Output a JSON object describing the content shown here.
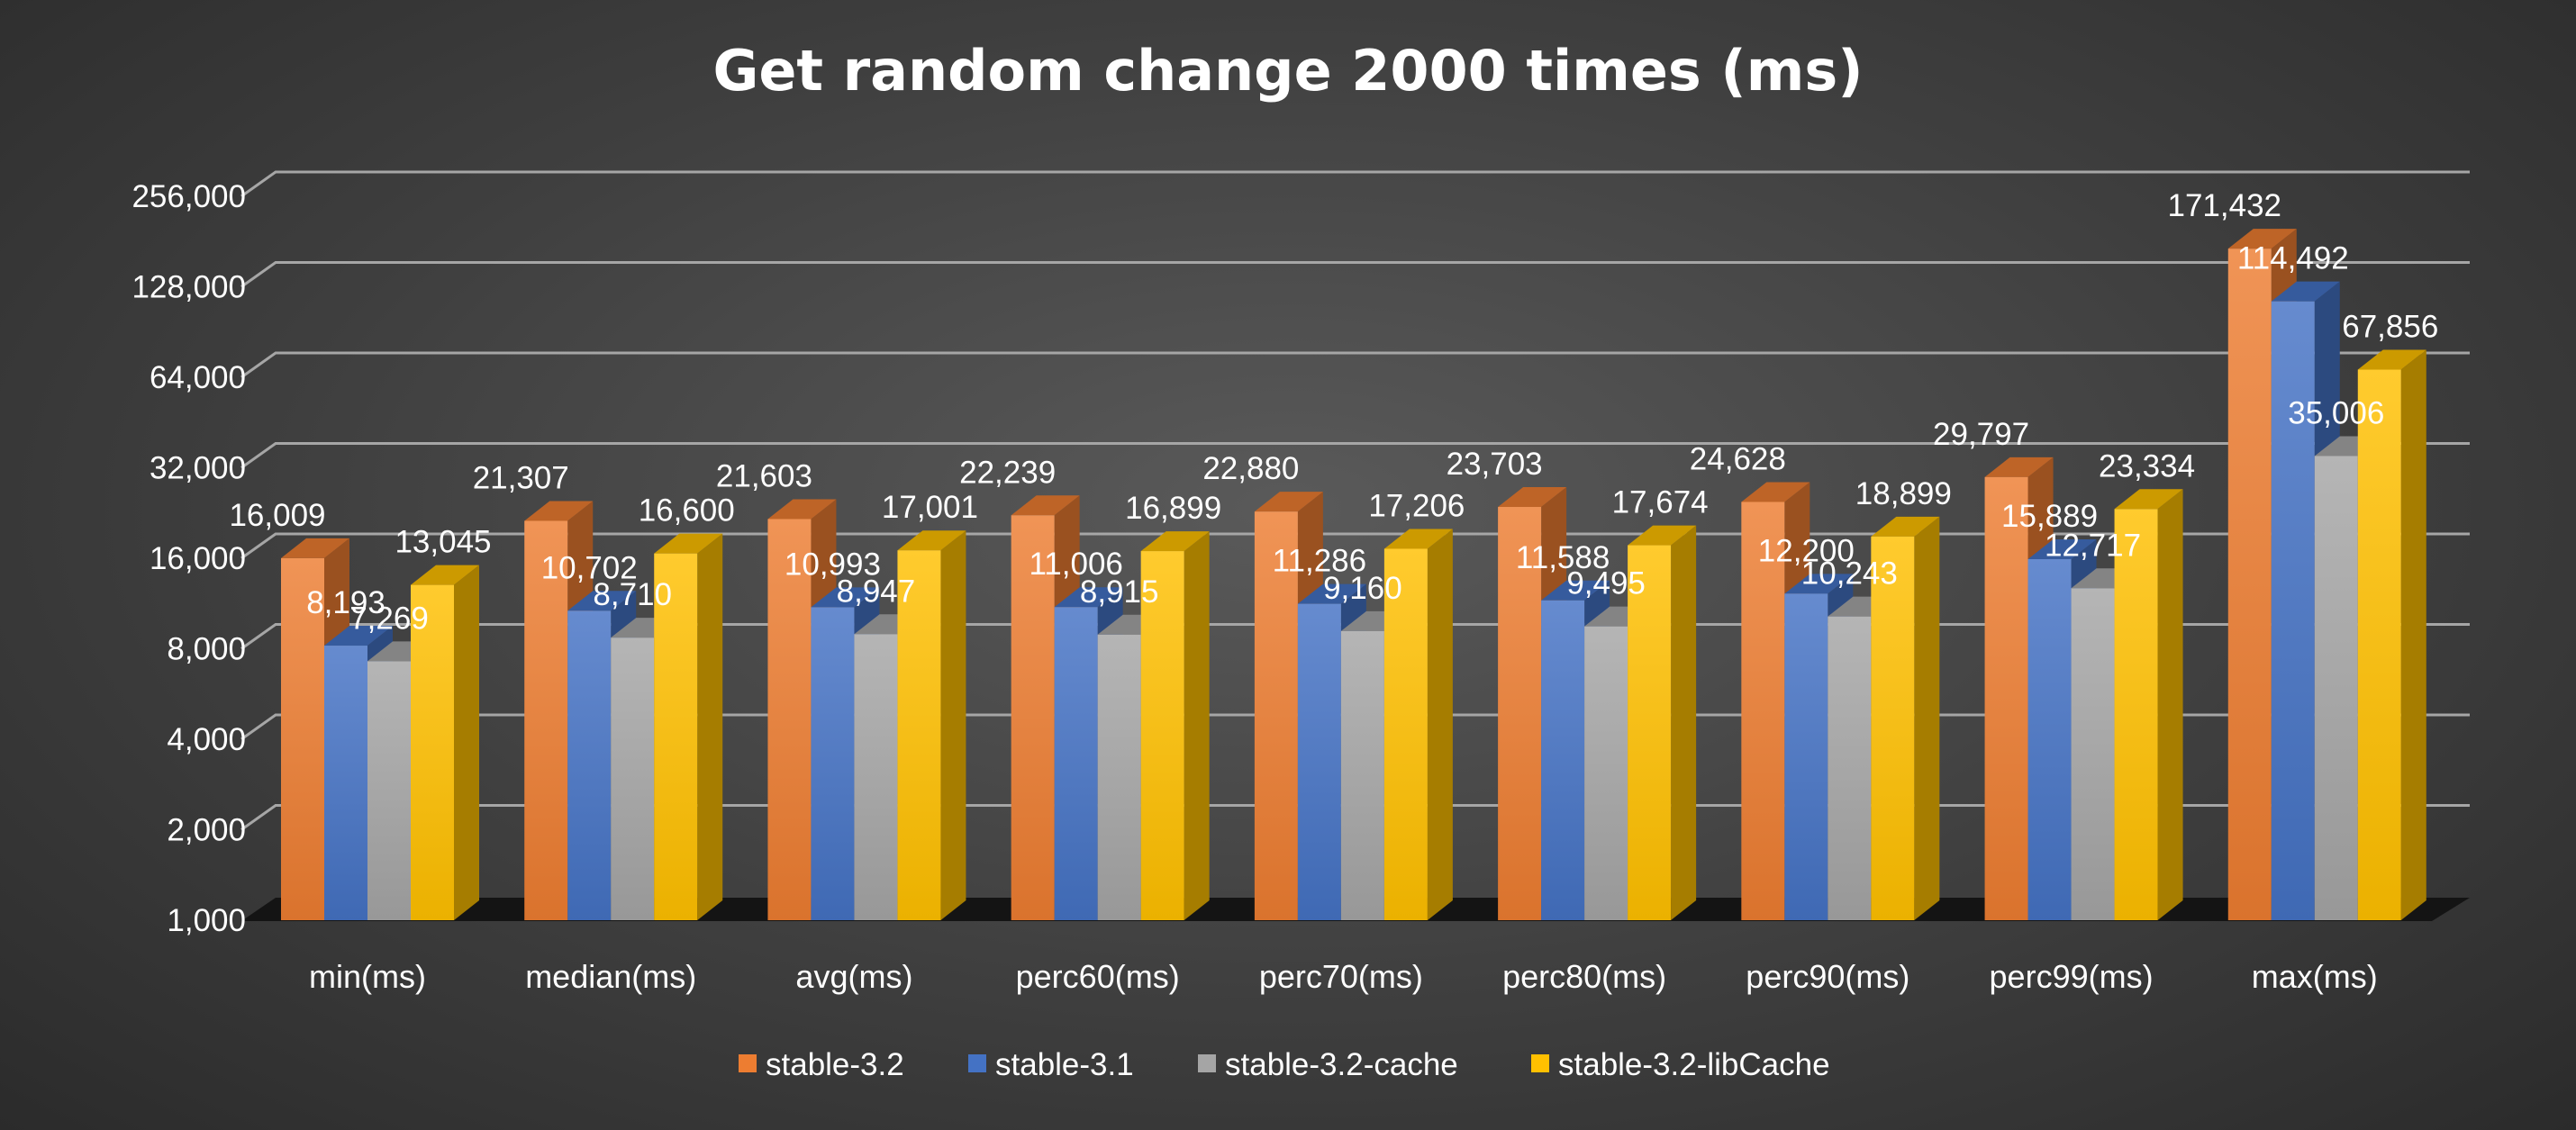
{
  "chart_data": {
    "type": "bar",
    "title": "Get random change 2000 times (ms)",
    "xlabel": "",
    "ylabel": "",
    "y_scale": "log2",
    "ylim": [
      1000,
      256000
    ],
    "y_ticks": [
      "1,000",
      "2,000",
      "4,000",
      "8,000",
      "16,000",
      "32,000",
      "64,000",
      "128,000",
      "256,000"
    ],
    "y_tick_values": [
      1000,
      2000,
      4000,
      8000,
      16000,
      32000,
      64000,
      128000,
      256000
    ],
    "grid": true,
    "style": "3d-clustered-column",
    "legend_position": "bottom",
    "categories": [
      "min(ms)",
      "median(ms)",
      "avg(ms)",
      "perc60(ms)",
      "perc70(ms)",
      "perc80(ms)",
      "perc90(ms)",
      "perc99(ms)",
      "max(ms)"
    ],
    "series": [
      {
        "name": "stable-3.2",
        "color": "#ED7D31",
        "values": [
          16009,
          21307,
          21603,
          22239,
          22880,
          23703,
          24628,
          29797,
          171432
        ],
        "labels": [
          "16,009",
          "21,307",
          "21,603",
          "22,239",
          "22,880",
          "23,703",
          "24,628",
          "29,797",
          "171,432"
        ]
      },
      {
        "name": "stable-3.1",
        "color": "#4472C4",
        "values": [
          8193,
          10702,
          10993,
          11006,
          11286,
          11588,
          12200,
          15889,
          114492
        ],
        "labels": [
          "8,193",
          "10,702",
          "10,993",
          "11,006",
          "11,286",
          "11,588",
          "12,200",
          "15,889",
          "114,492"
        ]
      },
      {
        "name": "stable-3.2-cache",
        "color": "#A5A5A5",
        "values": [
          7269,
          8710,
          8947,
          8915,
          9160,
          9495,
          10243,
          12717,
          35006
        ],
        "labels": [
          "7,269",
          "8,710",
          "8,947",
          "8,915",
          "9,160",
          "9,495",
          "10,243",
          "12,717",
          "35,006"
        ]
      },
      {
        "name": "stable-3.2-libCache",
        "color": "#FFC000",
        "values": [
          13045,
          16600,
          17001,
          16899,
          17206,
          17674,
          18899,
          23334,
          67856
        ],
        "labels": [
          "13,045",
          "16,600",
          "17,001",
          "16,899",
          "17,206",
          "17,674",
          "18,899",
          "23,334",
          "67,856"
        ]
      }
    ]
  }
}
